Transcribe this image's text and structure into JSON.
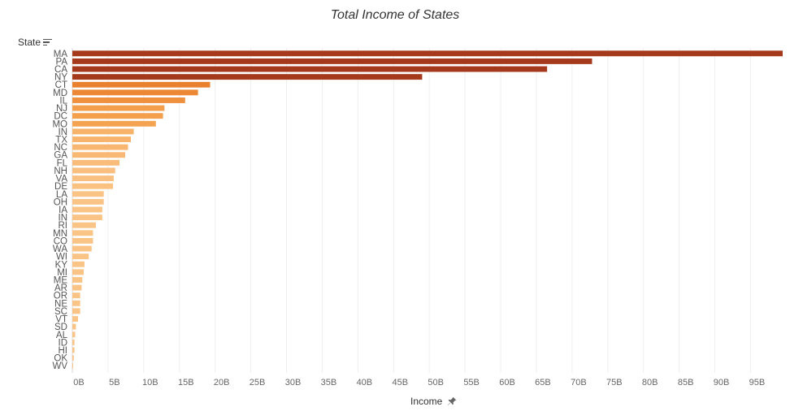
{
  "chart_data": {
    "type": "bar",
    "orientation": "horizontal",
    "title": "Total Income of States",
    "ylabel": "State",
    "xlabel": "Income",
    "categories": [
      "MA",
      "PA",
      "CA",
      "NY",
      "CT",
      "MD",
      "IL",
      "NJ",
      "DC",
      "MO",
      "IN",
      "TX",
      "NC",
      "GA",
      "FL",
      "NH",
      "VA",
      "DE",
      "LA",
      "OH",
      "IA",
      "IN",
      "RI",
      "MN",
      "CO",
      "WA",
      "WI",
      "KY",
      "MI",
      "ME",
      "AR",
      "OR",
      "NE",
      "SC",
      "VT",
      "SD",
      "AL",
      "ID",
      "HI",
      "OK",
      "WV"
    ],
    "values": [
      99.5,
      72.8,
      66.5,
      49.0,
      19.3,
      17.6,
      15.8,
      12.9,
      12.7,
      11.7,
      8.6,
      8.2,
      7.8,
      7.4,
      6.6,
      6.0,
      5.8,
      5.7,
      4.4,
      4.4,
      4.2,
      4.2,
      3.3,
      2.9,
      2.9,
      2.7,
      2.3,
      1.7,
      1.6,
      1.4,
      1.3,
      1.1,
      1.1,
      1.1,
      0.8,
      0.5,
      0.4,
      0.3,
      0.3,
      0.2,
      0.1
    ],
    "value_unit": "B",
    "xlim": [
      0,
      99.5
    ],
    "xticks": [
      "0B",
      "5B",
      "10B",
      "15B",
      "20B",
      "25B",
      "30B",
      "35B",
      "40B",
      "45B",
      "50B",
      "55B",
      "60B",
      "65B",
      "70B",
      "75B",
      "80B",
      "85B",
      "90B",
      "95B"
    ],
    "grid": true,
    "color_scale": {
      "low": "#fbc487",
      "mid": "#f4a24f",
      "high": "#e87d2a",
      "top": "#a5391c"
    }
  },
  "ui": {
    "icons": {
      "sort": "sort-descending-icon",
      "pin": "pin-icon"
    }
  }
}
